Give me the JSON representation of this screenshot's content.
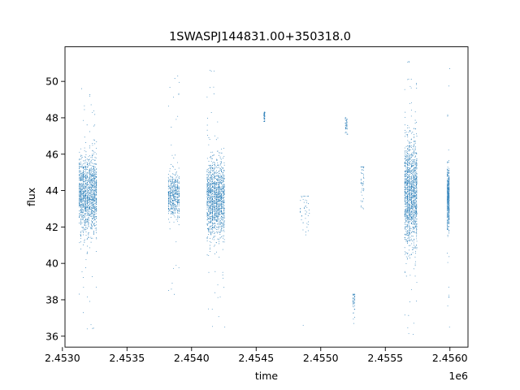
{
  "chart_data": {
    "type": "scatter",
    "title": "1SWASPJ144831.00+350318.0",
    "xlabel": "time",
    "ylabel": "flux",
    "x_offset_label": "1e6",
    "xlim": [
      2.45302,
      2.45614
    ],
    "ylim": [
      35.4,
      51.9
    ],
    "x_ticks": [
      2.453,
      2.4535,
      2.454,
      2.4545,
      2.455,
      2.4555,
      2.456
    ],
    "x_tick_labels": [
      "2.4530",
      "2.4535",
      "2.4540",
      "2.4545",
      "2.4550",
      "2.4555",
      "2.4560"
    ],
    "y_ticks": [
      36,
      38,
      40,
      42,
      44,
      46,
      48,
      50
    ],
    "y_tick_labels": [
      "36",
      "38",
      "40",
      "42",
      "44",
      "46",
      "48",
      "50"
    ],
    "grid": false,
    "legend": "none",
    "marker_color": "#1f77b4",
    "groups": [
      {
        "x": [
          2.45313,
          2.45327
        ],
        "center": 43.8,
        "spread": 1.0,
        "min": 36.4,
        "max": 49.6,
        "density": "dense"
      },
      {
        "x": [
          2.45382,
          2.45391
        ],
        "center": 43.8,
        "spread": 0.6,
        "min": 38.3,
        "max": 50.3,
        "density": "medium"
      },
      {
        "x": [
          2.45412,
          2.45426
        ],
        "center": 43.5,
        "spread": 1.0,
        "min": 36.5,
        "max": 50.6,
        "density": "dense"
      },
      {
        "x": [
          2.45456,
          2.45457
        ],
        "center": 48.0,
        "spread": 0.2,
        "min": 47.8,
        "max": 48.3,
        "density": "sparse"
      },
      {
        "x": [
          2.45484,
          2.45492
        ],
        "center": 43.0,
        "spread": 0.6,
        "min": 36.6,
        "max": 43.7,
        "density": "sparse"
      },
      {
        "x": [
          2.45519,
          2.45521
        ],
        "center": 47.6,
        "spread": 0.3,
        "min": 47.1,
        "max": 48.0,
        "density": "sparse"
      },
      {
        "x": [
          2.45525,
          2.45527
        ],
        "center": 38.0,
        "spread": 0.4,
        "min": 36.7,
        "max": 38.3,
        "density": "sparse"
      },
      {
        "x": [
          2.45531,
          2.45534
        ],
        "center": 44.5,
        "spread": 0.7,
        "min": 43.0,
        "max": 45.3,
        "density": "sparse"
      },
      {
        "x": [
          2.45565,
          2.45575
        ],
        "center": 43.8,
        "spread": 1.4,
        "min": 36.1,
        "max": 51.1,
        "density": "dense"
      },
      {
        "x": [
          2.45598,
          2.456
        ],
        "center": 43.6,
        "spread": 0.8,
        "min": 36.5,
        "max": 50.7,
        "density": "medium"
      }
    ]
  }
}
